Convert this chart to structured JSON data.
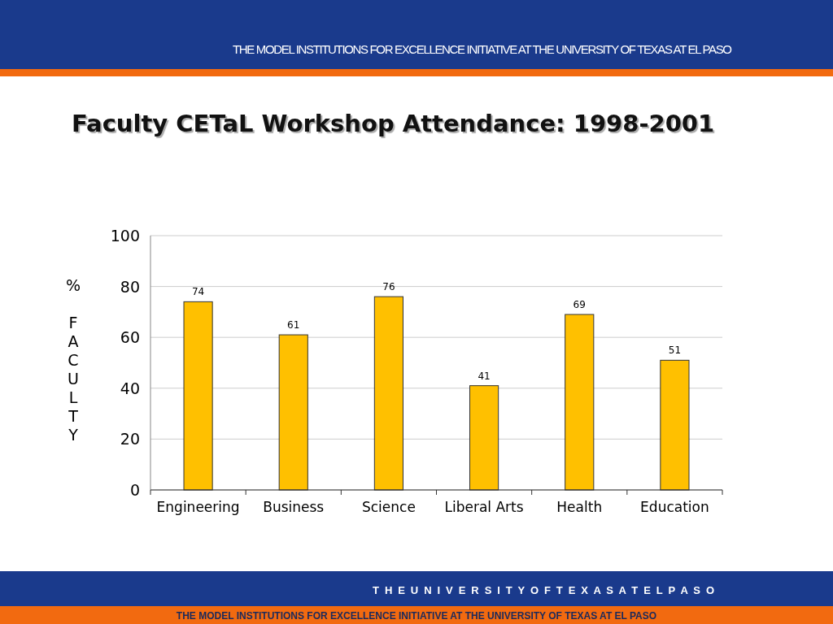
{
  "chart_data": {
    "type": "bar",
    "title": "Faculty  CETaL Workshop Attendance: 1998-2001",
    "ylabel": "% FACULTY",
    "categories": [
      "Engineering",
      "Business",
      "Science",
      "Liberal Arts",
      "Health",
      "Education"
    ],
    "values": [
      74,
      61,
      76,
      41,
      69,
      51
    ],
    "color": "#ffc000",
    "ylim": [
      0,
      100
    ],
    "yticks": [
      0,
      20,
      40,
      60,
      80,
      100
    ],
    "grid": "y",
    "data_labels": true,
    "annotations": [
      "THE MODEL INSTITUTIONS FOR EXCELLENCE INITIATIVE AT THE UNIVERSITY OF TEXAS AT EL PASO",
      "T H E   U N I V E R S I T Y   O F   T E X A S   A T   E L   P A S O",
      "THE MODEL INSTITUTIONS FOR EXCELLENCE INITIATIVE AT THE UNIVERSITY OF TEXAS AT EL PASO"
    ]
  }
}
